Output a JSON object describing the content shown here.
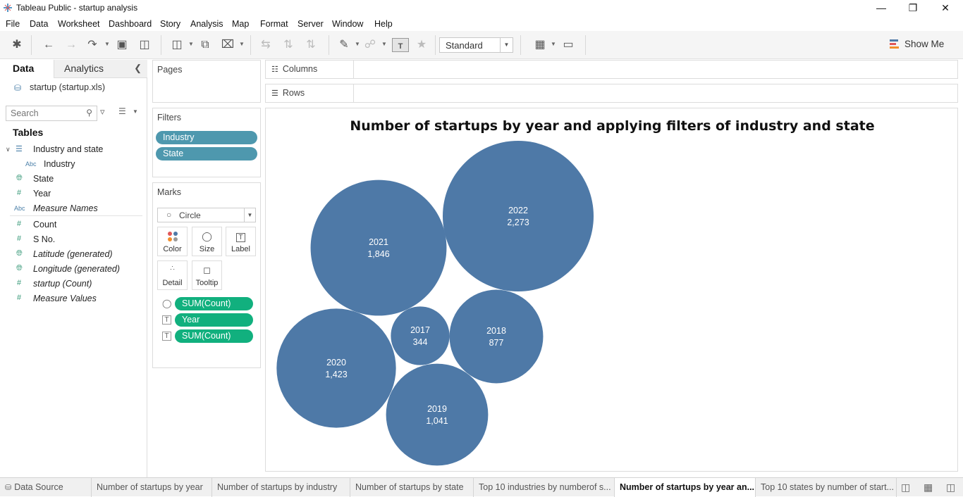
{
  "window": {
    "title": "Tableau Public - startup analysis"
  },
  "menu": [
    "File",
    "Data",
    "Worksheet",
    "Dashboard",
    "Story",
    "Analysis",
    "Map",
    "Format",
    "Server",
    "Window",
    "Help"
  ],
  "toolbar": {
    "fit_value": "Standard",
    "show_me_label": "Show Me"
  },
  "left_pane": {
    "tab_data": "Data",
    "tab_analytics": "Analytics",
    "datasource": "startup (startup.xls)",
    "search_placeholder": "Search",
    "tables_heading": "Tables",
    "fields": [
      {
        "label": "Industry and state",
        "icon": "table-icon"
      },
      {
        "label": "Industry",
        "icon": "abc-icon"
      },
      {
        "label": "State",
        "icon": "globe-icon"
      },
      {
        "label": "Year",
        "icon": "hash-icon"
      },
      {
        "label": "Measure Names",
        "icon": "abc-icon"
      },
      {
        "label": "Count",
        "icon": "hash-icon"
      },
      {
        "label": "S No.",
        "icon": "hash-icon"
      },
      {
        "label": "Latitude (generated)",
        "icon": "globe-icon"
      },
      {
        "label": "Longitude (generated)",
        "icon": "globe-icon"
      },
      {
        "label": "startup (Count)",
        "icon": "hash-icon"
      },
      {
        "label": "Measure Values",
        "icon": "hash-icon"
      }
    ]
  },
  "pages_card": {
    "title": "Pages"
  },
  "filters_card": {
    "title": "Filters",
    "pills": [
      "Industry",
      "State"
    ]
  },
  "marks_card": {
    "title": "Marks",
    "mark_type": "Circle",
    "buttons": [
      "Color",
      "Size",
      "Label",
      "Detail",
      "Tooltip"
    ],
    "pills": [
      "SUM(Count)",
      "Year",
      "SUM(Count)"
    ]
  },
  "shelves": {
    "columns": "Columns",
    "rows": "Rows"
  },
  "colors": {
    "bubble": "#4e79a7",
    "pill_blue": "#4e98ae",
    "pill_green": "#11b07e"
  },
  "chart_data": {
    "type": "packed-bubble",
    "title": "Number of startups by year and applying filters of industry and state",
    "categories": [
      "2017",
      "2018",
      "2019",
      "2020",
      "2021",
      "2022"
    ],
    "values": [
      344,
      877,
      1041,
      1423,
      1846,
      2273
    ],
    "value_labels": [
      "344",
      "877",
      "1,041",
      "1,423",
      "1,846",
      "2,273"
    ]
  },
  "bottom_tabs": [
    "Data Source",
    "Number of startups by year",
    "Number of startups by industry",
    "Number of startups by state",
    "Top 10 industries by numberof s...",
    "Number of startups by year an...",
    "Top 10 states by number of start..."
  ]
}
